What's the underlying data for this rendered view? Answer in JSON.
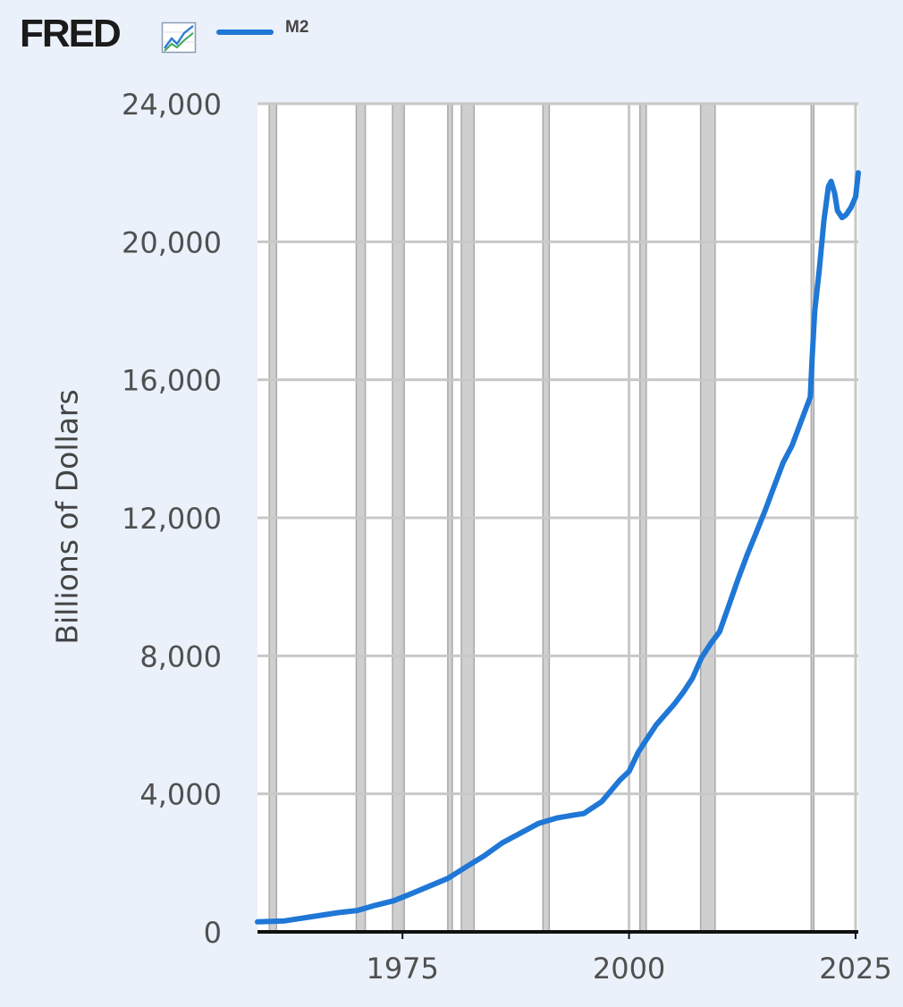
{
  "header": {
    "logo_text": "FRED",
    "logo_icon": "fred-chart-icon"
  },
  "colors": {
    "background": "#eaf1fa",
    "series": "#1f77d6",
    "grid": "#c8c8c8",
    "recession": "#cfcfcf",
    "axis": "#111111"
  },
  "chart_data": {
    "type": "line",
    "title": "",
    "xlabel": "",
    "ylabel": "Billions of Dollars",
    "xlim": [
      1959.0,
      2025.3
    ],
    "ylim": [
      0,
      24000
    ],
    "x_ticks": [
      {
        "label": "1975",
        "value": 1975
      },
      {
        "label": "2000",
        "value": 2000
      },
      {
        "label": "2025",
        "value": 2025
      }
    ],
    "y_ticks": [
      {
        "label": "0",
        "value": 0
      },
      {
        "label": "4,000",
        "value": 4000
      },
      {
        "label": "8,000",
        "value": 8000
      },
      {
        "label": "12,000",
        "value": 12000
      },
      {
        "label": "16,000",
        "value": 16000
      },
      {
        "label": "20,000",
        "value": 20000
      },
      {
        "label": "24,000",
        "value": 24000
      }
    ],
    "grid": true,
    "legend": "top-left",
    "recessions": [
      [
        1960.3,
        1961.1
      ],
      [
        1969.9,
        1970.9
      ],
      [
        1973.9,
        1975.2
      ],
      [
        1980.0,
        1980.5
      ],
      [
        1981.5,
        1982.9
      ],
      [
        1990.5,
        1991.2
      ],
      [
        2001.2,
        2001.9
      ],
      [
        2007.9,
        2009.5
      ],
      [
        2020.1,
        2020.35
      ]
    ],
    "series": [
      {
        "name": "M2",
        "x": [
          1959.0,
          1962,
          1965,
          1968,
          1970,
          1972,
          1974,
          1976,
          1978,
          1980,
          1982,
          1984,
          1986,
          1988,
          1990,
          1992,
          1994,
          1995,
          1997,
          1999,
          2000,
          2001,
          2002,
          2003,
          2004,
          2005,
          2006,
          2007,
          2008,
          2009,
          2010,
          2011,
          2012,
          2013,
          2014,
          2015,
          2016,
          2017,
          2018,
          2019,
          2020.0,
          2020.2,
          2020.5,
          2021.0,
          2021.5,
          2022.0,
          2022.3,
          2022.7,
          2023.0,
          2023.5,
          2023.8,
          2024.0,
          2024.5,
          2025.0,
          2025.3
        ],
        "values": [
          290,
          320,
          440,
          560,
          620,
          770,
          900,
          1110,
          1330,
          1550,
          1880,
          2200,
          2580,
          2860,
          3140,
          3300,
          3390,
          3430,
          3780,
          4400,
          4650,
          5200,
          5600,
          6000,
          6300,
          6600,
          6950,
          7350,
          7950,
          8350,
          8700,
          9450,
          10200,
          10900,
          11550,
          12200,
          12900,
          13600,
          14100,
          14800,
          15500,
          16600,
          18000,
          19200,
          20600,
          21600,
          21750,
          21400,
          20900,
          20700,
          20750,
          20800,
          21000,
          21300,
          22000
        ]
      }
    ]
  }
}
